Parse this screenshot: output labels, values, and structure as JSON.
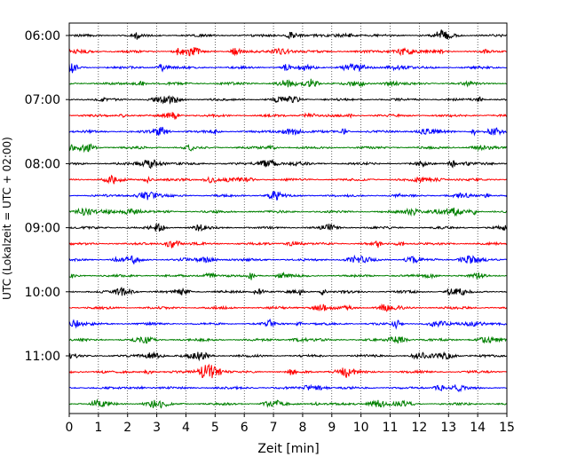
{
  "chart_data": {
    "type": "line",
    "subtype": "helicorder-seismogram",
    "title": "",
    "xlabel": "Zeit  [min]",
    "ylabel": "UTC (Lokalzeit = UTC + 02:00)",
    "xlim": [
      0,
      15
    ],
    "x_ticks": [
      0,
      1,
      2,
      3,
      4,
      5,
      6,
      7,
      8,
      9,
      10,
      11,
      12,
      13,
      14,
      15
    ],
    "x_tick_labels": [
      "0",
      "1",
      "2",
      "3",
      "4",
      "5",
      "6",
      "7",
      "8",
      "9",
      "10",
      "11",
      "12",
      "13",
      "14",
      "15"
    ],
    "y_direction": "top-to-bottom",
    "y_tick_labels": [
      "06:00",
      "07:00",
      "08:00",
      "09:00",
      "10:00",
      "11:00"
    ],
    "y_tick_trace_index": [
      0,
      4,
      8,
      12,
      16,
      20
    ],
    "trace_count": 24,
    "trace_minutes": 15,
    "traces_per_hour": 4,
    "start_time": "06:00",
    "color_cycle": [
      "#000000",
      "#ff0000",
      "#0000ff",
      "#008000"
    ],
    "vertical_grid": true,
    "grid_style": "dotted",
    "legend": "none"
  }
}
